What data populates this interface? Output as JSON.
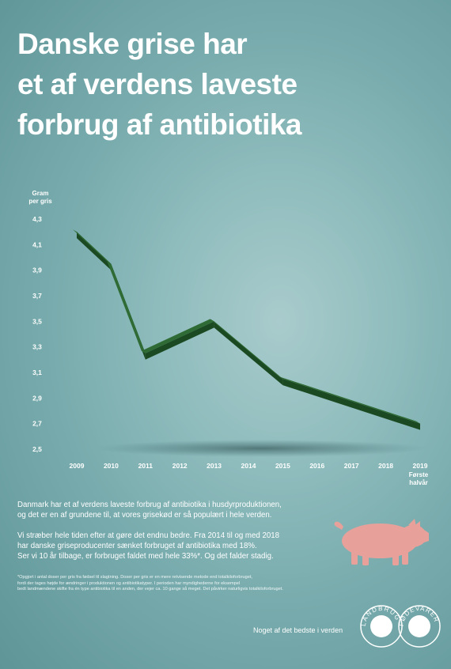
{
  "title_lines": [
    "Danske grise har",
    "et af verdens laveste",
    "forbrug af antibiotika"
  ],
  "chart_data": {
    "type": "line",
    "ylabel_lines": [
      "Gram",
      "per gris"
    ],
    "ylim": [
      2.5,
      4.3
    ],
    "yticks": [
      "4,3",
      "4,1",
      "3,9",
      "3,7",
      "3,5",
      "3,3",
      "3,1",
      "2,9",
      "2,7",
      "2,5"
    ],
    "ytick_values": [
      4.3,
      4.1,
      3.9,
      3.7,
      3.5,
      3.3,
      3.1,
      2.9,
      2.7,
      2.5
    ],
    "x_labels": [
      "2009",
      "2010",
      "2011",
      "2012",
      "2013",
      "2014",
      "2015",
      "2016",
      "2017",
      "2018",
      "2019"
    ],
    "x_sublabel": [
      "Første",
      "halvår"
    ],
    "x": [
      2009,
      2010,
      2011,
      2013,
      2015,
      2019
    ],
    "values": [
      4.2,
      3.95,
      3.25,
      3.5,
      3.05,
      2.7
    ],
    "line_color": "#2f6b35",
    "grid": false,
    "legend": "none"
  },
  "paragraph1": [
    "Danmark har et af verdens laveste forbrug af antibiotika i husdyrproduktionen,",
    "og det er en af grundene til, at vores grisekød er så populært i hele verden."
  ],
  "paragraph2": [
    "Vi stræber hele tiden efter at gøre det endnu bedre. Fra 2014 til og med 2018",
    "har danske griseproducenter sænket forbruget af antibiotika med 18%.",
    "Ser vi 10 år tilbage, er forbruget faldet med hele 33%*. Og det falder stadig."
  ],
  "footnote": [
    "*Opgjort i antal doser per gris fra fødsel til slagtning. Doser per gris er en mere retvisende metode end totalkiloforbruget,",
    "fordi der tages højde for ændringer i produktionen og antibiotikatyper. I perioden har myndighederne for eksempel",
    "bedt landmændene skifte fra én type antibiotika til en anden, der vejer ca. 10 gange så meget. Det påvirker naturligvis totalkiloforbruget."
  ],
  "tagline": "Noget af det bedste i verden",
  "logo": {
    "left": "LANDBRUG",
    "right": "FØDEVARER"
  },
  "colors": {
    "background": "#8fbcbd",
    "text": "#ffffff",
    "pig": "#e8a19a"
  }
}
